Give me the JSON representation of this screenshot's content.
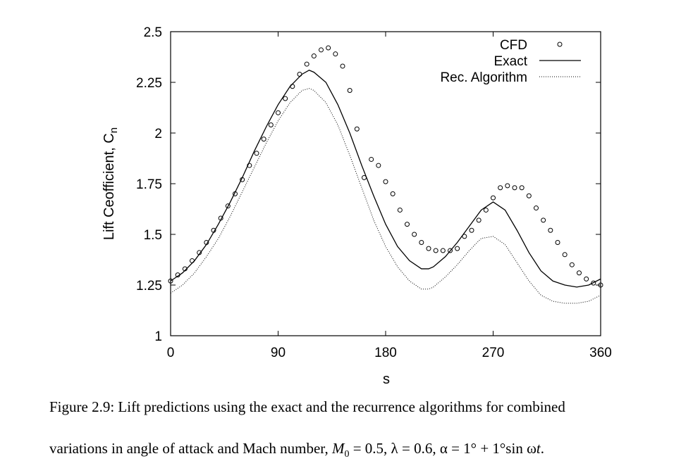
{
  "chart_data": {
    "type": "line",
    "title": "",
    "xlabel": "s",
    "ylabel": "Lift Ceofficient, C",
    "ylabel_subscript": "n",
    "xlim": [
      0,
      360
    ],
    "ylim": [
      1,
      2.5
    ],
    "xticks": [
      0,
      90,
      180,
      270,
      360
    ],
    "yticks": [
      1,
      1.25,
      1.5,
      1.75,
      2,
      2.25,
      2.5
    ],
    "ytick_labels": [
      "1",
      "1.25",
      "1.5",
      "1.75",
      "2",
      "2.25",
      "2.5"
    ],
    "grid": false,
    "legend_position": "top-right",
    "series": [
      {
        "name": "CFD",
        "style": "open-circle markers",
        "x": [
          0,
          6,
          12,
          18,
          24,
          30,
          36,
          42,
          48,
          54,
          60,
          66,
          72,
          78,
          84,
          90,
          96,
          102,
          108,
          114,
          120,
          126,
          132,
          138,
          144,
          150,
          156,
          162,
          168,
          174,
          180,
          186,
          192,
          198,
          204,
          210,
          216,
          222,
          228,
          234,
          240,
          246,
          252,
          258,
          264,
          270,
          276,
          282,
          288,
          294,
          300,
          306,
          312,
          318,
          324,
          330,
          336,
          342,
          348,
          354,
          360
        ],
        "y": [
          1.27,
          1.3,
          1.33,
          1.37,
          1.41,
          1.46,
          1.52,
          1.58,
          1.64,
          1.7,
          1.77,
          1.84,
          1.9,
          1.97,
          2.04,
          2.1,
          2.17,
          2.23,
          2.29,
          2.34,
          2.38,
          2.41,
          2.42,
          2.39,
          2.33,
          2.21,
          2.02,
          1.78,
          1.87,
          1.84,
          1.76,
          1.7,
          1.62,
          1.55,
          1.5,
          1.46,
          1.43,
          1.42,
          1.42,
          1.42,
          1.43,
          1.49,
          1.52,
          1.57,
          1.62,
          1.68,
          1.73,
          1.74,
          1.73,
          1.73,
          1.69,
          1.63,
          1.57,
          1.52,
          1.46,
          1.4,
          1.35,
          1.31,
          1.28,
          1.26,
          1.25
        ]
      },
      {
        "name": "Exact",
        "style": "solid line",
        "x": [
          0,
          10,
          20,
          30,
          40,
          50,
          60,
          70,
          80,
          90,
          100,
          110,
          116,
          120,
          130,
          140,
          150,
          160,
          170,
          180,
          190,
          200,
          210,
          216,
          220,
          230,
          240,
          250,
          260,
          270,
          280,
          290,
          300,
          310,
          320,
          330,
          340,
          350,
          360
        ],
        "y": [
          1.27,
          1.31,
          1.37,
          1.45,
          1.55,
          1.66,
          1.78,
          1.91,
          2.03,
          2.14,
          2.23,
          2.29,
          2.31,
          2.3,
          2.25,
          2.14,
          2.0,
          1.84,
          1.69,
          1.55,
          1.44,
          1.37,
          1.33,
          1.33,
          1.34,
          1.39,
          1.46,
          1.54,
          1.62,
          1.66,
          1.62,
          1.52,
          1.41,
          1.32,
          1.27,
          1.25,
          1.24,
          1.25,
          1.28
        ]
      },
      {
        "name": "Rec. Algorithm",
        "style": "dotted line",
        "x": [
          0,
          10,
          20,
          30,
          40,
          50,
          60,
          70,
          80,
          90,
          100,
          110,
          116,
          120,
          130,
          140,
          150,
          160,
          170,
          180,
          190,
          200,
          210,
          216,
          220,
          230,
          240,
          250,
          260,
          270,
          280,
          290,
          300,
          310,
          320,
          330,
          340,
          350,
          360
        ],
        "y": [
          1.21,
          1.25,
          1.31,
          1.39,
          1.48,
          1.59,
          1.71,
          1.83,
          1.95,
          2.06,
          2.15,
          2.21,
          2.22,
          2.21,
          2.15,
          2.04,
          1.89,
          1.73,
          1.57,
          1.44,
          1.34,
          1.27,
          1.23,
          1.23,
          1.24,
          1.29,
          1.35,
          1.42,
          1.48,
          1.49,
          1.45,
          1.36,
          1.27,
          1.2,
          1.17,
          1.16,
          1.16,
          1.17,
          1.2
        ]
      }
    ]
  },
  "caption": {
    "line1": "Figure 2.9: Lift predictions using the exact and the recurrence algorithms for combined",
    "line2_text": "variations in angle of attack and Mach number, ",
    "line2_m": "M",
    "line2_m_sub": "0",
    "line2_rest": " = 0.5, λ = 0.6, α = 1° + 1°sin ω",
    "line2_t": "t",
    "line2_end": "."
  }
}
